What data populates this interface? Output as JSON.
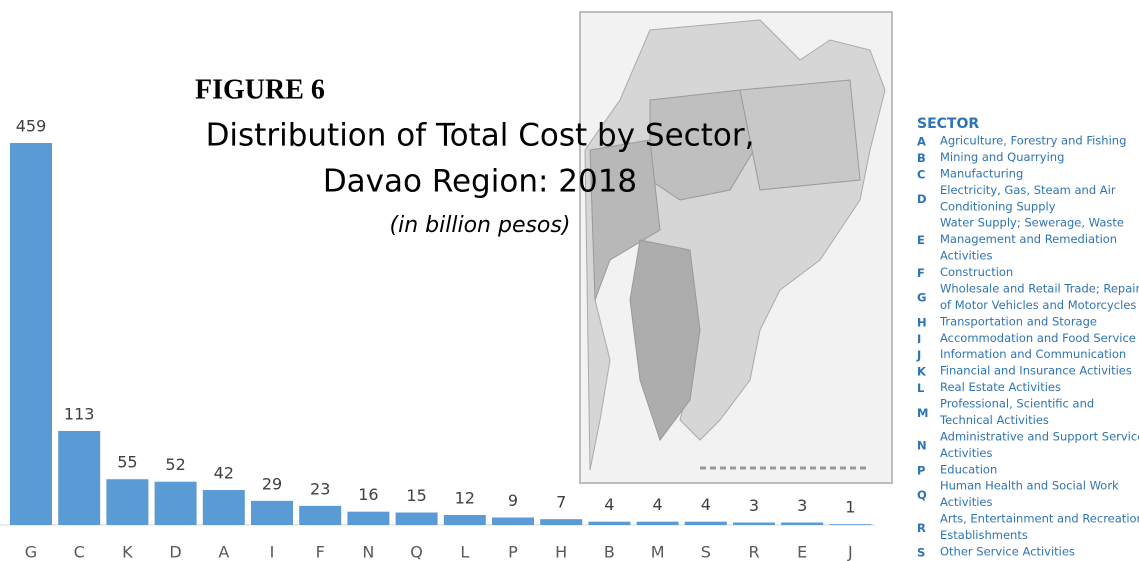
{
  "chart_data": {
    "type": "bar",
    "label": "FIGURE 6",
    "title": "Distribution of Total Cost by Sector,",
    "title_line2": "Davao Region: 2018",
    "subtitle": "(in billion pesos)",
    "categories": [
      "G",
      "C",
      "K",
      "D",
      "A",
      "I",
      "F",
      "N",
      "Q",
      "L",
      "P",
      "H",
      "B",
      "M",
      "S",
      "R",
      "E",
      "J"
    ],
    "values": [
      459,
      113,
      55,
      52,
      42,
      29,
      23,
      16,
      15,
      12,
      9,
      7,
      4,
      4,
      4,
      3,
      3,
      1
    ],
    "color": "#5b9bd5",
    "legend": {
      "title": "SECTOR",
      "items": [
        {
          "key": "A",
          "lines": [
            "Agriculture, Forestry and Fishing"
          ]
        },
        {
          "key": "B",
          "lines": [
            "Mining and Quarrying"
          ]
        },
        {
          "key": "C",
          "lines": [
            "Manufacturing"
          ]
        },
        {
          "key": "D",
          "lines": [
            "Electricity, Gas, Steam and Air",
            "Conditioning Supply"
          ]
        },
        {
          "key": "E",
          "lines": [
            "Water Supply; Sewerage, Waste",
            "Management and Remediation",
            "Activities"
          ]
        },
        {
          "key": "F",
          "lines": [
            "Construction"
          ]
        },
        {
          "key": "G",
          "lines": [
            "Wholesale and Retail Trade; Repair",
            "of Motor Vehicles and Motorcycles"
          ]
        },
        {
          "key": "H",
          "lines": [
            "Transportation and Storage"
          ]
        },
        {
          "key": "I",
          "lines": [
            "Accommodation and Food Service"
          ]
        },
        {
          "key": "J",
          "lines": [
            "Information and Communication"
          ]
        },
        {
          "key": "K",
          "lines": [
            "Financial and Insurance Activities"
          ]
        },
        {
          "key": "L",
          "lines": [
            "Real Estate Activities"
          ]
        },
        {
          "key": "M",
          "lines": [
            "Professional, Scientific and",
            "Technical Activities"
          ]
        },
        {
          "key": "N",
          "lines": [
            "Administrative and Support Service",
            "Activities"
          ]
        },
        {
          "key": "P",
          "lines": [
            "Education"
          ]
        },
        {
          "key": "Q",
          "lines": [
            "Human Health and Social Work",
            "Activities"
          ]
        },
        {
          "key": "R",
          "lines": [
            "Arts, Entertainment and Recreation",
            "Establishments"
          ]
        },
        {
          "key": "S",
          "lines": [
            "Other Service Activities"
          ]
        }
      ]
    }
  }
}
